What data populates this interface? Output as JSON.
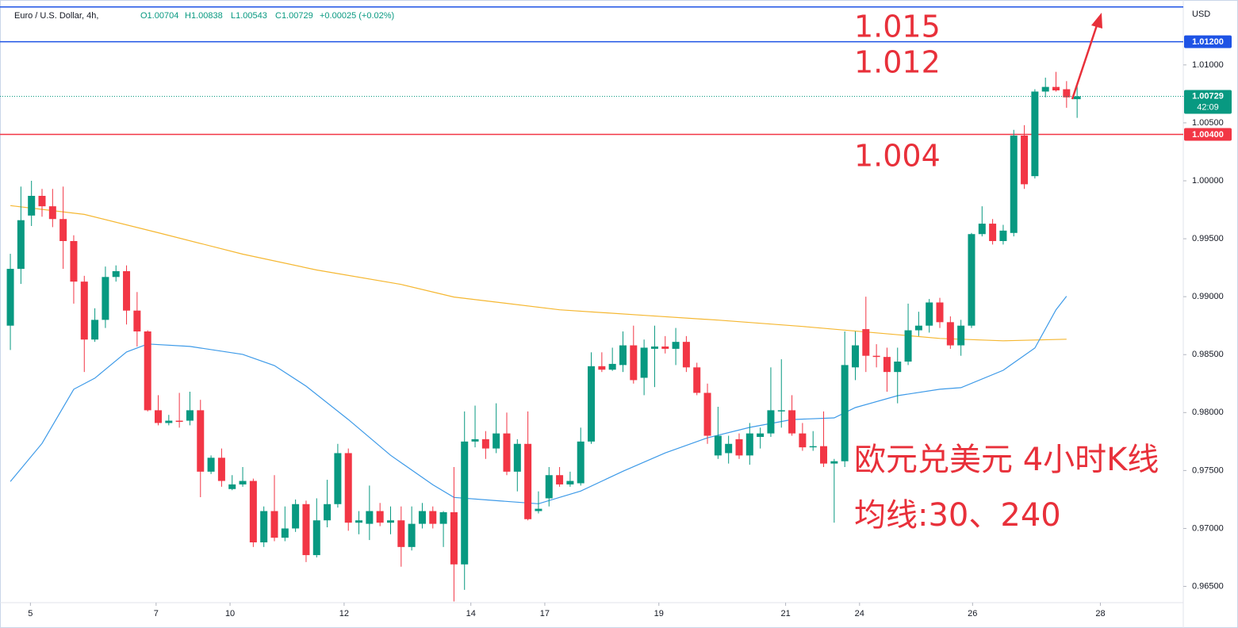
{
  "chart_data": {
    "type": "candlestick",
    "title": "Euro / U.S. Dollar, 4h,",
    "ohlc_header": [
      "O1.00704",
      "H1.00838",
      "L1.00543",
      "C1.00729",
      "+0.00025 (+0.02%)"
    ],
    "currency": "USD",
    "up_color": "#089981",
    "down_color": "#f23645",
    "grid": false,
    "xlim": [
      -0.98,
      111.05
    ],
    "xticks": [
      {
        "value": 1.9,
        "label": "5"
      },
      {
        "value": 13.8,
        "label": "7"
      },
      {
        "value": 20.8,
        "label": "10"
      },
      {
        "value": 31.6,
        "label": "12"
      },
      {
        "value": 43.6,
        "label": "14"
      },
      {
        "value": 50.6,
        "label": "17"
      },
      {
        "value": 61.4,
        "label": "19"
      },
      {
        "value": 73.4,
        "label": "21"
      },
      {
        "value": 80.4,
        "label": "24"
      },
      {
        "value": 91.1,
        "label": "26"
      },
      {
        "value": 103.2,
        "label": "28"
      }
    ],
    "ylim": [
      0.9636,
      1.0156
    ],
    "yticks": [
      {
        "value": 0.965,
        "label": "0.96500"
      },
      {
        "value": 0.97,
        "label": "0.97000"
      },
      {
        "value": 0.975,
        "label": "0.97500"
      },
      {
        "value": 0.98,
        "label": "0.98000"
      },
      {
        "value": 0.985,
        "label": "0.98500"
      },
      {
        "value": 0.99,
        "label": "0.99000"
      },
      {
        "value": 0.995,
        "label": "0.99500"
      },
      {
        "value": 1.0,
        "label": "1.00000"
      },
      {
        "value": 1.005,
        "label": "1.00500"
      },
      {
        "value": 1.01,
        "label": "1.01000"
      }
    ],
    "candles": {
      "open": [
        0.9875,
        0.9924,
        0.997,
        0.9987,
        0.9978,
        0.9967,
        0.9948,
        0.9913,
        0.9863,
        0.988,
        0.9917,
        0.9922,
        0.9888,
        0.987,
        0.9802,
        0.9791,
        0.9793,
        0.9793,
        0.9802,
        0.9749,
        0.9761,
        0.9734,
        0.9738,
        0.9741,
        0.9688,
        0.9715,
        0.9692,
        0.97,
        0.9721,
        0.9677,
        0.9707,
        0.9721,
        0.9765,
        0.9705,
        0.9704,
        0.9715,
        0.9705,
        0.9707,
        0.9684,
        0.9704,
        0.9715,
        0.9704,
        0.9714,
        0.9669,
        0.9775,
        0.9777,
        0.9769,
        0.9782,
        0.9749,
        0.9773,
        0.9715,
        0.9726,
        0.9746,
        0.9738,
        0.9739,
        0.9775,
        0.984,
        0.9837,
        0.9841,
        0.9858,
        0.983,
        0.9855,
        0.9857,
        0.9855,
        0.9861,
        0.9839,
        0.9817,
        0.9763,
        0.9765,
        0.9777,
        0.9763,
        0.9779,
        0.9782,
        0.9801,
        0.9802,
        0.9782,
        0.977,
        0.9771,
        0.9756,
        0.9758,
        0.9839,
        0.9872,
        0.9849,
        0.9848,
        0.9835,
        0.9844,
        0.9871,
        0.9875,
        0.9895,
        0.9878,
        0.9858,
        0.9875,
        0.9954,
        0.9963,
        0.9948,
        0.9955,
        1.0039,
        1.0004,
        1.0077,
        1.0081,
        1.0079,
        1.00704
      ],
      "high": [
        0.9937,
        0.9995,
        1.0,
        0.9993,
        0.9993,
        0.9995,
        0.9953,
        0.9918,
        0.989,
        0.9926,
        0.9927,
        0.9927,
        0.9904,
        0.9871,
        0.9815,
        0.9798,
        0.9817,
        0.9818,
        0.9811,
        0.9763,
        0.9769,
        0.9746,
        0.9753,
        0.9743,
        0.9719,
        0.9746,
        0.9719,
        0.9725,
        0.9724,
        0.9726,
        0.9742,
        0.9773,
        0.9769,
        0.9715,
        0.9737,
        0.9722,
        0.9719,
        0.9719,
        0.9719,
        0.9722,
        0.9719,
        0.9715,
        0.9753,
        0.9801,
        0.9806,
        0.9784,
        0.9808,
        0.98,
        0.9777,
        0.9801,
        0.9732,
        0.9753,
        0.9753,
        0.9749,
        0.9787,
        0.9852,
        0.9852,
        0.9856,
        0.987,
        0.9875,
        0.9863,
        0.9875,
        0.9866,
        0.9873,
        0.9866,
        0.9843,
        0.9825,
        0.9805,
        0.978,
        0.9782,
        0.9791,
        0.9787,
        0.9839,
        0.9846,
        0.9815,
        0.9791,
        0.9784,
        0.9801,
        0.976,
        0.987,
        0.987,
        0.99,
        0.9859,
        0.9856,
        0.9856,
        0.9894,
        0.9887,
        0.9898,
        0.9899,
        0.9883,
        0.988,
        0.9955,
        0.9978,
        0.9967,
        0.9962,
        1.0044,
        1.0048,
        1.0079,
        1.0089,
        1.0094,
        1.0086,
        1.00838
      ],
      "low": [
        0.9854,
        0.9911,
        0.9961,
        0.9969,
        0.996,
        0.9924,
        0.9894,
        0.9835,
        0.9861,
        0.9873,
        0.9913,
        0.9876,
        0.9857,
        0.9801,
        0.9789,
        0.9789,
        0.9787,
        0.9789,
        0.9727,
        0.9747,
        0.9736,
        0.9733,
        0.9736,
        0.9684,
        0.9684,
        0.9689,
        0.9689,
        0.9697,
        0.9671,
        0.9675,
        0.9701,
        0.9718,
        0.9698,
        0.9695,
        0.969,
        0.9702,
        0.9695,
        0.9667,
        0.9681,
        0.97,
        0.97,
        0.9684,
        0.9637,
        0.9647,
        0.977,
        0.976,
        0.9765,
        0.9746,
        0.9732,
        0.9707,
        0.9713,
        0.9719,
        0.9736,
        0.9736,
        0.9737,
        0.9773,
        0.9835,
        0.9836,
        0.9835,
        0.9825,
        0.9815,
        0.9822,
        0.9851,
        0.9841,
        0.9835,
        0.9815,
        0.9773,
        0.976,
        0.9756,
        0.976,
        0.9755,
        0.9769,
        0.9779,
        0.9787,
        0.978,
        0.9767,
        0.9767,
        0.9753,
        0.9705,
        0.9753,
        0.9828,
        0.9835,
        0.9839,
        0.9818,
        0.9808,
        0.9841,
        0.9866,
        0.9869,
        0.9873,
        0.9855,
        0.9849,
        0.9873,
        0.9952,
        0.9945,
        0.9945,
        0.9952,
        0.9993,
        1.0002,
        1.0072,
        1.0077,
        1.0063,
        1.00543
      ],
      "close": [
        0.9924,
        0.9966,
        0.9987,
        0.9978,
        0.9967,
        0.9948,
        0.9913,
        0.9863,
        0.988,
        0.9917,
        0.9922,
        0.9888,
        0.987,
        0.9802,
        0.9791,
        0.9793,
        0.9792,
        0.9802,
        0.9749,
        0.9761,
        0.9741,
        0.9738,
        0.9741,
        0.9688,
        0.9715,
        0.9692,
        0.97,
        0.9721,
        0.9677,
        0.9707,
        0.9721,
        0.9765,
        0.9705,
        0.9707,
        0.9715,
        0.9705,
        0.9707,
        0.9684,
        0.9704,
        0.9715,
        0.9704,
        0.9714,
        0.9669,
        0.9775,
        0.9777,
        0.9769,
        0.9782,
        0.9749,
        0.9773,
        0.9708,
        0.9717,
        0.9746,
        0.9738,
        0.9741,
        0.9775,
        0.984,
        0.9837,
        0.9842,
        0.9858,
        0.9828,
        0.9856,
        0.9857,
        0.9855,
        0.9861,
        0.9839,
        0.9817,
        0.978,
        0.978,
        0.9773,
        0.9763,
        0.9782,
        0.9782,
        0.9802,
        0.9802,
        0.9782,
        0.977,
        0.9771,
        0.9756,
        0.9758,
        0.9841,
        0.9858,
        0.9849,
        0.9848,
        0.9835,
        0.9844,
        0.9871,
        0.9875,
        0.9895,
        0.9878,
        0.9858,
        0.9875,
        0.9954,
        0.9963,
        0.9948,
        0.9957,
        1.0039,
        0.9997,
        1.0077,
        1.0081,
        1.0078,
        1.0072,
        1.00729
      ]
    },
    "lines": [
      {
        "color": "#f5b731",
        "x": [
          0,
          7,
          14,
          22,
          29,
          37,
          42,
          52,
          60,
          67,
          75,
          82,
          88,
          94,
          100
        ],
        "values": [
          0.99786,
          0.9971,
          0.99552,
          0.99367,
          0.9923,
          0.99106,
          0.98997,
          0.98887,
          0.98839,
          0.98798,
          0.98743,
          0.98688,
          0.9864,
          0.98619,
          0.98633
        ]
      },
      {
        "color": "#3d9ae8",
        "x": [
          0,
          3,
          6,
          8,
          11,
          13,
          17,
          22,
          25,
          28,
          32,
          36,
          40,
          42,
          46,
          50,
          54,
          58,
          62,
          66,
          70,
          74,
          78,
          80,
          84,
          88,
          90,
          94,
          97,
          99,
          100
        ],
        "values": [
          0.97405,
          0.97734,
          0.98201,
          0.98297,
          0.98523,
          0.98592,
          0.98571,
          0.98502,
          0.98406,
          0.98228,
          0.9794,
          0.97631,
          0.97377,
          0.97268,
          0.9724,
          0.97213,
          0.97323,
          0.97494,
          0.97652,
          0.97782,
          0.97872,
          0.9794,
          0.97954,
          0.98043,
          0.98146,
          0.98201,
          0.98215,
          0.98365,
          0.98557,
          0.98887,
          0.99004
        ]
      }
    ],
    "levels": [
      {
        "value": 1.015,
        "color": "#1e53e5"
      },
      {
        "value": 1.012,
        "label": "1.01200",
        "color": "#1e53e5"
      },
      {
        "value": 1.004,
        "label": "1.00400",
        "color": "#f23645"
      }
    ],
    "last_price": {
      "value": 1.00729,
      "label": "1.00729",
      "countdown": "42:09",
      "color": "#089981"
    },
    "annotations": [
      "1.015",
      "1.012",
      "1.004",
      "欧元兑美元 4小时K线",
      "均线:30、240"
    ],
    "annotation_color": "#e8303a"
  }
}
